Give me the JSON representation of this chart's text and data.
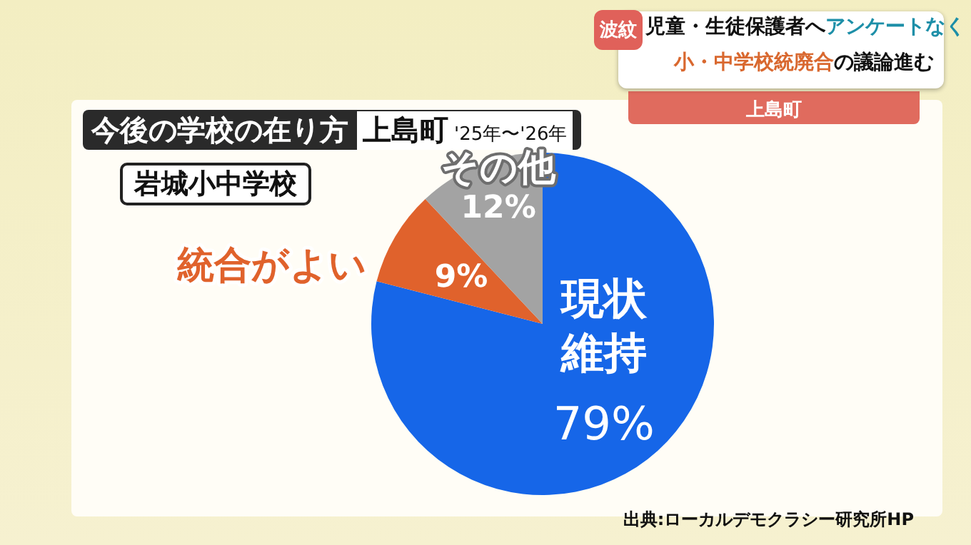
{
  "chart_data": {
    "type": "pie",
    "title": "今後の学校の在り方",
    "subtitle": "上島町 '25年〜'26年",
    "categories": [
      "現状維持",
      "統合がよい",
      "その他"
    ],
    "values": [
      79,
      9,
      12
    ],
    "colors": [
      "#1666e8",
      "#e0622c",
      "#a3a3a3"
    ],
    "value_labels": [
      "79%",
      "9%",
      "12%"
    ],
    "legend": false,
    "annotations": [
      "岩城小中学校",
      "出典:ローカルデモクラシー研究所HP",
      "波紋",
      "児童・生徒保護者へ",
      "アンケートなく",
      "小・中学校統廃合",
      "の議論進む",
      "上島町"
    ]
  }
}
